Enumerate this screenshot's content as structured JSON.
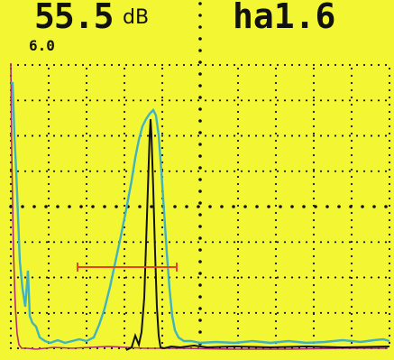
{
  "readouts": {
    "gain_value": "55.5",
    "gain_unit": "dB",
    "ha_value": "ha1.6",
    "range_value": "6.0"
  },
  "colors": {
    "screen_background": "#f3f733",
    "grid_dots": "#111111",
    "trace_cyan": "#3fb3bf",
    "trace_black": "#111111",
    "trace_magenta": "#b0306e",
    "gate_red": "#e8441c"
  },
  "display": {
    "grid": "dotted",
    "divisions_horizontal": 10,
    "divisions_vertical": 8,
    "traces": [
      "cyan-echo",
      "black-echo",
      "magenta-echo"
    ],
    "gate": "red-gate-bar"
  }
}
